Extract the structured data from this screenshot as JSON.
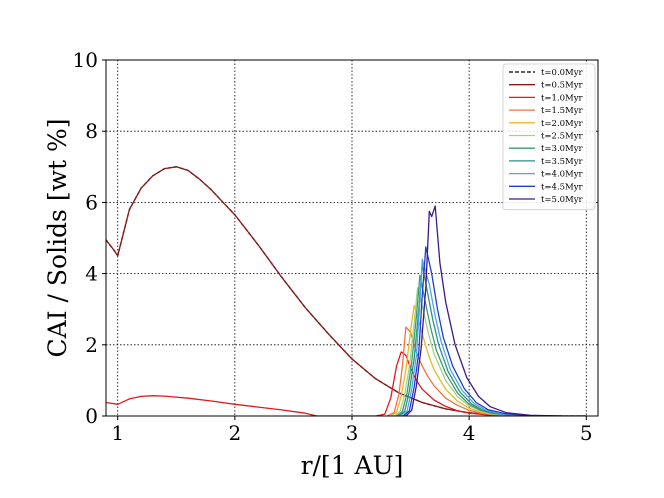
{
  "chart_data": {
    "type": "line",
    "xlabel": "r/[1 AU]",
    "ylabel": "CAI / Solids [wt %]",
    "xlim": [
      0.9,
      5.1
    ],
    "ylim": [
      0,
      10
    ],
    "x_ticks": [
      1,
      2,
      3,
      4,
      5
    ],
    "x_tick_labels": [
      "1",
      "2",
      "3",
      "4",
      "5"
    ],
    "y_ticks": [
      0,
      2,
      4,
      6,
      8,
      10
    ],
    "y_tick_labels": [
      "0",
      "2",
      "4",
      "6",
      "8",
      "10"
    ],
    "grid": true,
    "legend_position": "top-right",
    "series": [
      {
        "name": "t=0.0Myr",
        "color": "#000000",
        "dashed": true,
        "x": [
          0.9,
          0.97,
          1.0,
          1.1,
          1.2,
          1.3,
          1.4,
          1.5,
          1.6,
          1.7,
          1.8,
          1.9,
          2.0,
          2.2,
          2.4,
          2.6,
          2.8,
          3.0,
          3.2,
          3.4,
          3.6,
          3.8,
          4.0,
          4.2,
          4.4,
          4.6,
          4.8,
          5.0
        ],
        "y": [
          4.95,
          4.65,
          4.5,
          5.8,
          6.4,
          6.75,
          6.95,
          7.0,
          6.9,
          6.65,
          6.35,
          6.0,
          5.65,
          4.8,
          3.9,
          3.05,
          2.3,
          1.6,
          1.05,
          0.65,
          0.38,
          0.2,
          0.09,
          0.03,
          0.01,
          0.0,
          0.0,
          0.0
        ]
      },
      {
        "name": "t=0.5Myr",
        "color": "#8b1a1a",
        "dashed": false,
        "x": [
          0.9,
          0.97,
          1.0,
          1.1,
          1.2,
          1.3,
          1.4,
          1.5,
          1.6,
          1.7,
          1.8,
          1.9,
          2.0,
          2.2,
          2.4,
          2.6,
          2.8,
          3.0,
          3.2,
          3.4,
          3.6,
          3.8,
          4.0,
          4.2,
          4.4,
          4.6,
          4.8,
          5.0
        ],
        "y": [
          4.95,
          4.65,
          4.5,
          5.8,
          6.4,
          6.75,
          6.95,
          7.0,
          6.9,
          6.65,
          6.35,
          6.0,
          5.65,
          4.8,
          3.9,
          3.05,
          2.3,
          1.6,
          1.05,
          0.65,
          0.38,
          0.2,
          0.09,
          0.03,
          0.01,
          0.0,
          0.0,
          0.0
        ]
      },
      {
        "name": "t=1.0Myr",
        "color": "#e31a1c",
        "dashed": false,
        "x": [
          0.9,
          1.0,
          1.1,
          1.2,
          1.3,
          1.4,
          1.6,
          1.8,
          2.0,
          2.2,
          2.4,
          2.6,
          2.7,
          3.0,
          3.2,
          3.28,
          3.33,
          3.38,
          3.42,
          3.46,
          3.5,
          3.55,
          3.6,
          3.7,
          3.8,
          3.9,
          4.0,
          4.2,
          4.4,
          4.6,
          5.0
        ],
        "y": [
          0.38,
          0.33,
          0.48,
          0.55,
          0.57,
          0.56,
          0.5,
          0.42,
          0.33,
          0.25,
          0.17,
          0.08,
          0.0,
          0.0,
          0.0,
          0.05,
          0.5,
          1.4,
          1.8,
          1.7,
          1.35,
          1.0,
          0.75,
          0.45,
          0.27,
          0.15,
          0.08,
          0.02,
          0.0,
          0.0,
          0.0
        ]
      },
      {
        "name": "t=1.5Myr",
        "color": "#f4733a",
        "dashed": false,
        "x": [
          3.3,
          3.36,
          3.4,
          3.43,
          3.46,
          3.5,
          3.53,
          3.56,
          3.6,
          3.65,
          3.7,
          3.8,
          3.9,
          4.0,
          4.1,
          4.2,
          4.4,
          4.6
        ],
        "y": [
          0.0,
          0.1,
          0.6,
          1.4,
          2.5,
          2.35,
          2.0,
          1.7,
          1.4,
          1.1,
          0.85,
          0.5,
          0.3,
          0.16,
          0.08,
          0.04,
          0.0,
          0.0
        ]
      },
      {
        "name": "t=2.0Myr",
        "color": "#e8b824",
        "dashed": false,
        "x": [
          3.33,
          3.38,
          3.42,
          3.46,
          3.5,
          3.53,
          3.56,
          3.6,
          3.65,
          3.7,
          3.8,
          3.9,
          4.0,
          4.1,
          4.2,
          4.4,
          4.6
        ],
        "y": [
          0.0,
          0.1,
          0.55,
          1.3,
          2.4,
          3.1,
          2.8,
          2.3,
          1.75,
          1.3,
          0.75,
          0.42,
          0.22,
          0.11,
          0.05,
          0.01,
          0.0
        ]
      },
      {
        "name": "t=2.5Myr",
        "color": "#9fd38a",
        "dashed": false,
        "x": [
          3.36,
          3.41,
          3.45,
          3.49,
          3.53,
          3.56,
          3.6,
          3.65,
          3.7,
          3.8,
          3.9,
          4.0,
          4.1,
          4.2,
          4.4,
          4.6
        ],
        "y": [
          0.0,
          0.12,
          0.6,
          1.4,
          2.6,
          3.6,
          3.1,
          2.35,
          1.75,
          1.0,
          0.55,
          0.28,
          0.14,
          0.06,
          0.01,
          0.0
        ]
      },
      {
        "name": "t=3.0Myr",
        "color": "#3c9b6c",
        "dashed": false,
        "x": [
          3.38,
          3.43,
          3.47,
          3.51,
          3.55,
          3.58,
          3.62,
          3.67,
          3.72,
          3.8,
          3.9,
          4.0,
          4.1,
          4.2,
          4.4,
          4.6
        ],
        "y": [
          0.0,
          0.12,
          0.65,
          1.5,
          2.8,
          3.95,
          3.3,
          2.5,
          1.85,
          1.2,
          0.65,
          0.33,
          0.16,
          0.07,
          0.01,
          0.0
        ]
      },
      {
        "name": "t=3.5Myr",
        "color": "#2b8f8a",
        "dashed": false,
        "x": [
          3.4,
          3.45,
          3.49,
          3.53,
          3.57,
          3.6,
          3.64,
          3.69,
          3.74,
          3.82,
          3.92,
          4.02,
          4.12,
          4.25,
          4.45,
          4.7
        ],
        "y": [
          0.0,
          0.13,
          0.7,
          1.6,
          3.0,
          4.25,
          3.55,
          2.7,
          2.0,
          1.25,
          0.68,
          0.34,
          0.16,
          0.06,
          0.01,
          0.0
        ]
      },
      {
        "name": "t=4.0Myr",
        "color": "#4da6e8",
        "dashed": false,
        "x": [
          3.42,
          3.47,
          3.51,
          3.55,
          3.58,
          3.6,
          3.66,
          3.71,
          3.76,
          3.84,
          3.94,
          4.04,
          4.14,
          4.27,
          4.47,
          4.7
        ],
        "y": [
          0.0,
          0.14,
          0.75,
          1.7,
          3.2,
          4.4,
          3.7,
          2.8,
          2.1,
          1.3,
          0.72,
          0.36,
          0.17,
          0.06,
          0.01,
          0.0
        ]
      },
      {
        "name": "t=4.5Myr",
        "color": "#1f3fcf",
        "dashed": false,
        "x": [
          3.44,
          3.49,
          3.53,
          3.57,
          3.6,
          3.63,
          3.68,
          3.73,
          3.78,
          3.86,
          3.96,
          4.06,
          4.16,
          4.3,
          4.5,
          4.75
        ],
        "y": [
          0.0,
          0.15,
          0.8,
          1.8,
          3.4,
          4.75,
          4.0,
          3.0,
          2.2,
          1.4,
          0.76,
          0.38,
          0.18,
          0.07,
          0.01,
          0.0
        ]
      },
      {
        "name": "t=5.0Myr",
        "color": "#3d1a8c",
        "dashed": false,
        "x": [
          3.46,
          3.51,
          3.55,
          3.59,
          3.63,
          3.66,
          3.68,
          3.71,
          3.75,
          3.8,
          3.88,
          3.98,
          4.08,
          4.18,
          4.32,
          4.52,
          4.8
        ],
        "y": [
          0.0,
          0.16,
          0.85,
          1.9,
          3.6,
          5.75,
          5.6,
          5.9,
          4.3,
          3.2,
          2.0,
          1.08,
          0.55,
          0.26,
          0.09,
          0.02,
          0.0
        ]
      }
    ]
  }
}
